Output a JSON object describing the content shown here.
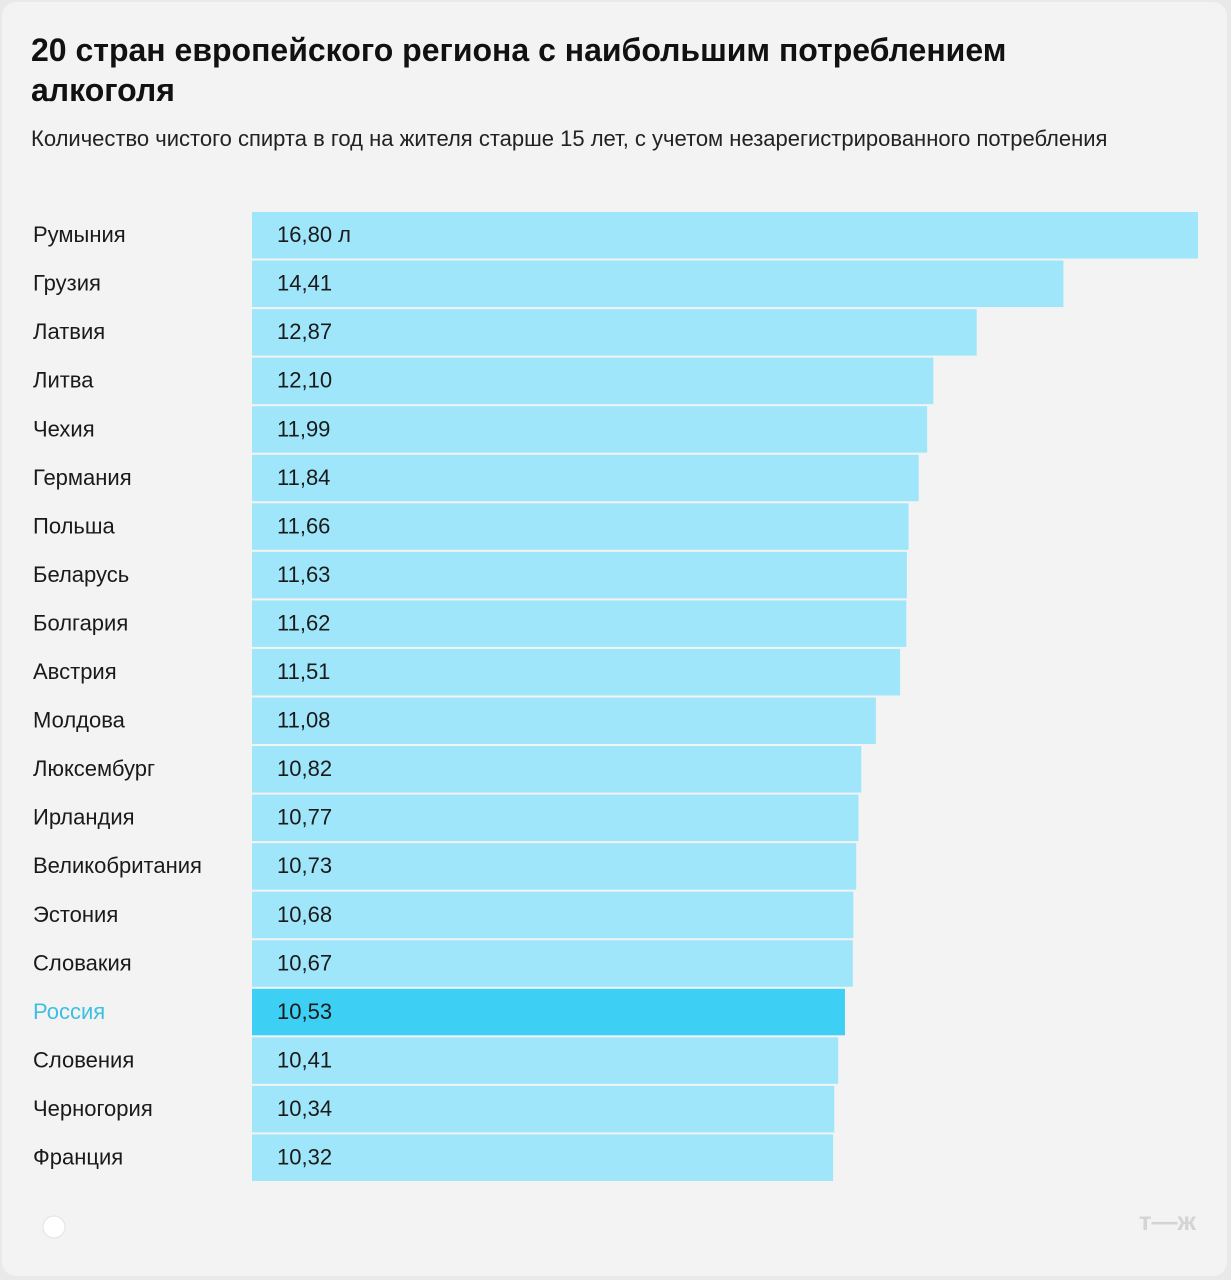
{
  "chart_data": {
    "type": "barh",
    "title": "20 стран европейского региона с наибольшим потреблением алкоголя",
    "subtitle": "Количество чистого спирта в год на жителя старше 15 лет, с учетом незарегистрированного потребления",
    "categories": [
      "Румыния",
      "Грузия",
      "Латвия",
      "Литва",
      "Чехия",
      "Германия",
      "Польша",
      "Беларусь",
      "Болгария",
      "Австрия",
      "Молдова",
      "Люксембург",
      "Ирландия",
      "Великобритания",
      "Эстония",
      "Словакия",
      "Россия",
      "Словения",
      "Черногория",
      "Франция"
    ],
    "values": [
      16.8,
      14.41,
      12.87,
      12.1,
      11.99,
      11.84,
      11.66,
      11.63,
      11.62,
      11.51,
      11.08,
      10.82,
      10.77,
      10.73,
      10.68,
      10.67,
      10.53,
      10.41,
      10.34,
      10.32
    ],
    "value_labels": [
      "16,80 л",
      "14,41",
      "12,87",
      "12,10",
      "11,99",
      "11,84",
      "11,66",
      "11,63",
      "11,62",
      "11,51",
      "11,08",
      "10,82",
      "10,77",
      "10,73",
      "10,68",
      "10,67",
      "10,53",
      "10,41",
      "10,34",
      "10,32"
    ],
    "colors": [
      "#9fe6fa",
      "#9fe6fa",
      "#9fe6fa",
      "#9fe6fa",
      "#9fe6fa",
      "#9fe6fa",
      "#9fe6fa",
      "#9fe6fa",
      "#9fe6fa",
      "#9fe6fa",
      "#9fe6fa",
      "#9fe6fa",
      "#9fe6fa",
      "#9fe6fa",
      "#9fe6fa",
      "#9fe6fa",
      "#3ecff5",
      "#9fe6fa",
      "#9fe6fa",
      "#9fe6fa"
    ],
    "label_colors": [
      "#1a1a1a",
      "#1a1a1a",
      "#1a1a1a",
      "#1a1a1a",
      "#1a1a1a",
      "#1a1a1a",
      "#1a1a1a",
      "#1a1a1a",
      "#1a1a1a",
      "#1a1a1a",
      "#1a1a1a",
      "#1a1a1a",
      "#1a1a1a",
      "#1a1a1a",
      "#1a1a1a",
      "#1a1a1a",
      "#3cbfe0",
      "#1a1a1a",
      "#1a1a1a",
      "#1a1a1a"
    ],
    "logo": "т—ж"
  }
}
